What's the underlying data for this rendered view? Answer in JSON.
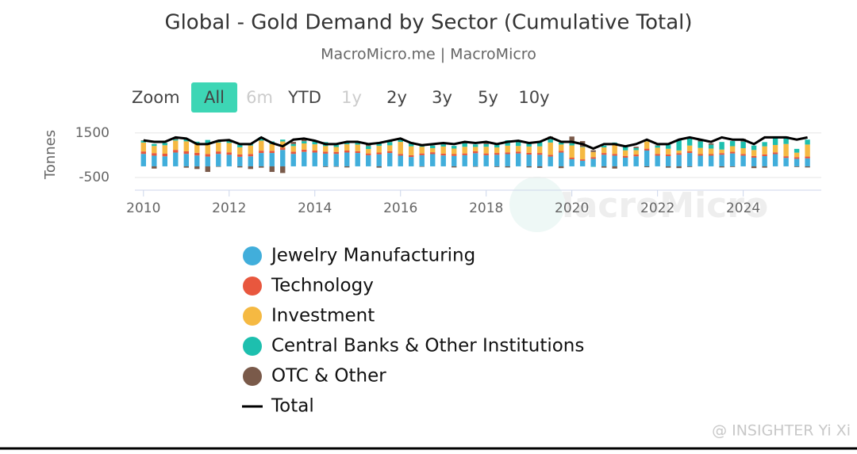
{
  "chart_data": {
    "type": "stacked-bar-line",
    "title": "Global - Gold Demand by Sector (Cumulative Total)",
    "subtitle": "MacroMicro.me | MacroMicro",
    "y_label": "Tonnes",
    "zoom": {
      "label": "Zoom",
      "options": [
        "All",
        "6m",
        "YTD",
        "1y",
        "2y",
        "3y",
        "5y",
        "10y"
      ],
      "active": 0,
      "disabled": [
        1,
        3
      ]
    },
    "watermark": "MacroMicro",
    "credit": "@ INSIGHTER Yi Xi",
    "xlim": [
      2009.8,
      2025.6
    ],
    "xticks": [
      2010,
      2012,
      2014,
      2016,
      2018,
      2020,
      2022,
      2024
    ],
    "ylim": [
      -1070,
      1600
    ],
    "yticks": [
      -500,
      1500
    ],
    "grid": true,
    "x": [
      2010,
      2010.25,
      2010.5,
      2010.75,
      2011,
      2011.25,
      2011.5,
      2011.75,
      2012,
      2012.25,
      2012.5,
      2012.75,
      2013,
      2013.25,
      2013.5,
      2013.75,
      2014,
      2014.25,
      2014.5,
      2014.75,
      2015,
      2015.25,
      2015.5,
      2015.75,
      2016,
      2016.25,
      2016.5,
      2016.75,
      2017,
      2017.25,
      2017.5,
      2017.75,
      2018,
      2018.25,
      2018.5,
      2018.75,
      2019,
      2019.25,
      2019.5,
      2019.75,
      2020,
      2020.25,
      2020.5,
      2020.75,
      2021,
      2021.25,
      2021.5,
      2021.75,
      2022,
      2022.25,
      2022.5,
      2022.75,
      2023,
      2023.25,
      2023.5,
      2023.75,
      2024,
      2024.25,
      2024.5,
      2024.75,
      2025,
      2025.25,
      2025.5
    ],
    "series": [
      {
        "name": "Jewelry Manufacturing",
        "kind": "bar",
        "color": "#41aedb",
        "values": [
          560,
          480,
          450,
          620,
          560,
          490,
          440,
          560,
          520,
          430,
          450,
          600,
          600,
          740,
          560,
          650,
          620,
          570,
          560,
          620,
          600,
          500,
          540,
          600,
          480,
          420,
          500,
          550,
          490,
          470,
          500,
          590,
          500,
          520,
          550,
          580,
          530,
          520,
          440,
          620,
          320,
          250,
          340,
          520,
          480,
          390,
          450,
          710,
          480,
          460,
          520,
          600,
          480,
          480,
          520,
          580,
          480,
          390,
          460,
          550,
          380,
          340,
          360
        ]
      },
      {
        "name": "Technology",
        "kind": "bar",
        "color": "#e8573e",
        "values": [
          110,
          115,
          118,
          120,
          115,
          118,
          115,
          110,
          110,
          105,
          105,
          105,
          100,
          100,
          100,
          100,
          90,
          90,
          90,
          90,
          85,
          80,
          80,
          85,
          80,
          80,
          80,
          85,
          80,
          80,
          80,
          85,
          80,
          80,
          80,
          85,
          80,
          80,
          80,
          80,
          70,
          65,
          75,
          80,
          80,
          80,
          80,
          85,
          80,
          80,
          75,
          75,
          70,
          70,
          75,
          75,
          75,
          75,
          80,
          80,
          75,
          75,
          80
        ]
      },
      {
        "name": "Investment",
        "kind": "bar",
        "color": "#f5b942",
        "values": [
          400,
          320,
          380,
          420,
          450,
          420,
          480,
          400,
          420,
          320,
          380,
          450,
          300,
          280,
          250,
          280,
          280,
          250,
          220,
          280,
          290,
          200,
          300,
          260,
          540,
          400,
          300,
          180,
          320,
          250,
          300,
          200,
          300,
          250,
          300,
          250,
          280,
          300,
          550,
          280,
          550,
          550,
          230,
          250,
          410,
          250,
          200,
          330,
          280,
          250,
          120,
          260,
          280,
          250,
          160,
          250,
          260,
          270,
          360,
          330,
          550,
          200,
          540
        ]
      },
      {
        "name": "Central Banks & Other Institutions",
        "kind": "bar",
        "color": "#1dbfae",
        "values": [
          80,
          90,
          100,
          50,
          130,
          80,
          150,
          80,
          100,
          160,
          100,
          160,
          120,
          80,
          90,
          100,
          120,
          180,
          90,
          120,
          100,
          130,
          170,
          150,
          100,
          120,
          100,
          120,
          100,
          120,
          150,
          110,
          120,
          190,
          240,
          170,
          140,
          220,
          150,
          90,
          100,
          20,
          -20,
          80,
          100,
          200,
          90,
          70,
          90,
          190,
          460,
          380,
          290,
          170,
          340,
          230,
          300,
          200,
          190,
          330,
          240,
          170,
          220
        ]
      },
      {
        "name": "OTC & Other",
        "kind": "bar",
        "color": "#7a5a4a",
        "values": [
          20,
          -100,
          10,
          80,
          -60,
          -120,
          -250,
          -20,
          30,
          -50,
          -120,
          -60,
          -250,
          -300,
          100,
          120,
          60,
          -30,
          -20,
          -50,
          40,
          80,
          -60,
          40,
          60,
          70,
          -20,
          10,
          80,
          -50,
          30,
          -20,
          50,
          -30,
          -50,
          80,
          -50,
          -70,
          120,
          -80,
          300,
          250,
          80,
          -60,
          -100,
          30,
          60,
          -40,
          20,
          -60,
          -80,
          -30,
          90,
          60,
          -50,
          -30,
          120,
          -80,
          -60,
          10,
          100,
          -30,
          -50
        ]
      },
      {
        "name": "Total",
        "kind": "line",
        "color": "#000000",
        "values": [
          1170,
          1100,
          1100,
          1300,
          1250,
          1000,
          1000,
          1150,
          1180,
          1000,
          1000,
          1300,
          1050,
          900,
          1200,
          1250,
          1150,
          1000,
          1000,
          1100,
          1100,
          1000,
          1050,
          1150,
          1250,
          1050,
          950,
          1000,
          1050,
          1000,
          1100,
          1050,
          1100,
          1000,
          1100,
          1150,
          1050,
          1100,
          1300,
          1100,
          1100,
          1000,
          800,
          1000,
          1000,
          900,
          1000,
          1200,
          1000,
          1000,
          1200,
          1300,
          1200,
          1100,
          1300,
          1200,
          1200,
          1000,
          1300,
          1300,
          1300,
          1200,
          1300
        ]
      }
    ]
  }
}
